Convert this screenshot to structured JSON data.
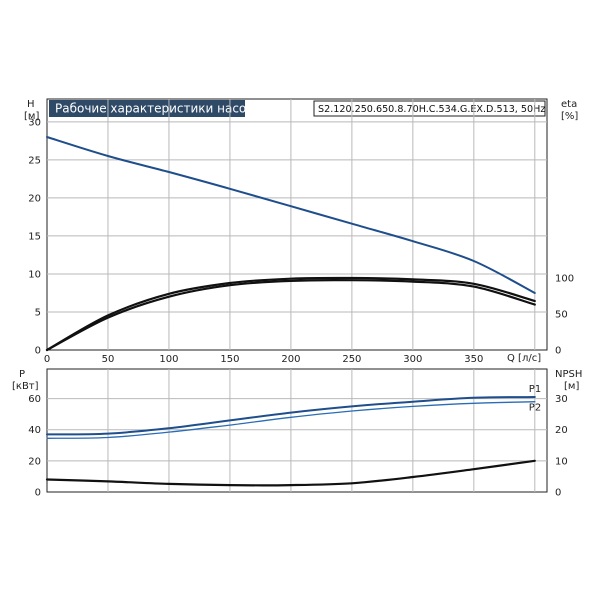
{
  "chart_data": [
    {
      "type": "line",
      "title": "Рабочие характеристики насоса",
      "model": "S2.120.250.650.8.70H.C.534.G.EX.D.513, 50Hz",
      "xlabel": "Q [л/с]",
      "xlim": [
        0,
        410
      ],
      "xticks": [
        0,
        50,
        100,
        150,
        200,
        250,
        300,
        350
      ],
      "grid": true,
      "left_axis": {
        "label": "H",
        "unit": "[м]",
        "ylim": [
          0,
          33
        ],
        "ticks": [
          0,
          5,
          10,
          15,
          20,
          25,
          30
        ]
      },
      "right_axis": {
        "label": "eta",
        "unit": "[%]",
        "ticks": [
          0,
          50,
          100
        ]
      },
      "series": [
        {
          "axis": "left",
          "color": "#1f4e8c",
          "x": [
            0,
            50,
            100,
            150,
            200,
            250,
            300,
            350,
            400
          ],
          "values": [
            28,
            25.5,
            23.4,
            21.2,
            18.9,
            16.6,
            14.3,
            11.7,
            7.5
          ]
        },
        {
          "axis": "right",
          "color": "#111111",
          "x": [
            0,
            50,
            100,
            150,
            200,
            250,
            300,
            350,
            400
          ],
          "values": [
            0,
            48,
            78,
            93,
            99,
            100,
            98,
            92,
            68
          ]
        },
        {
          "axis": "right",
          "color": "#111111",
          "x": [
            0,
            50,
            100,
            150,
            200,
            250,
            300,
            350,
            400
          ],
          "values": [
            0,
            45,
            74,
            90,
            96,
            97,
            95,
            88,
            63
          ]
        }
      ]
    },
    {
      "type": "line",
      "xlim": [
        0,
        410
      ],
      "xticks": [
        0,
        50,
        100,
        150,
        200,
        250,
        300,
        350
      ],
      "grid": true,
      "left_axis": {
        "label": "P",
        "unit": "[кВт]",
        "ylim": [
          0,
          79
        ],
        "ticks": [
          0,
          20,
          40,
          60
        ]
      },
      "right_axis": {
        "label": "NPSH",
        "unit": "[м]",
        "ticks": [
          0,
          10,
          20,
          30
        ]
      },
      "series": [
        {
          "name": "P1",
          "axis": "left",
          "color": "#1f4e8c",
          "x": [
            0,
            50,
            100,
            150,
            200,
            250,
            300,
            350,
            400
          ],
          "values": [
            37,
            37.5,
            41,
            46,
            51,
            55,
            58,
            60.5,
            61
          ]
        },
        {
          "name": "P2",
          "axis": "left",
          "color": "#2a6db5",
          "x": [
            0,
            50,
            100,
            150,
            200,
            250,
            300,
            350,
            400
          ],
          "values": [
            34.5,
            35,
            38.5,
            43,
            48,
            52,
            55,
            57,
            58
          ]
        },
        {
          "axis": "right",
          "color": "#111111",
          "x": [
            0,
            50,
            100,
            150,
            200,
            250,
            300,
            350,
            400
          ],
          "values": [
            4,
            3.4,
            2.6,
            2.2,
            2.2,
            2.8,
            4.8,
            7.3,
            10
          ]
        }
      ]
    }
  ]
}
